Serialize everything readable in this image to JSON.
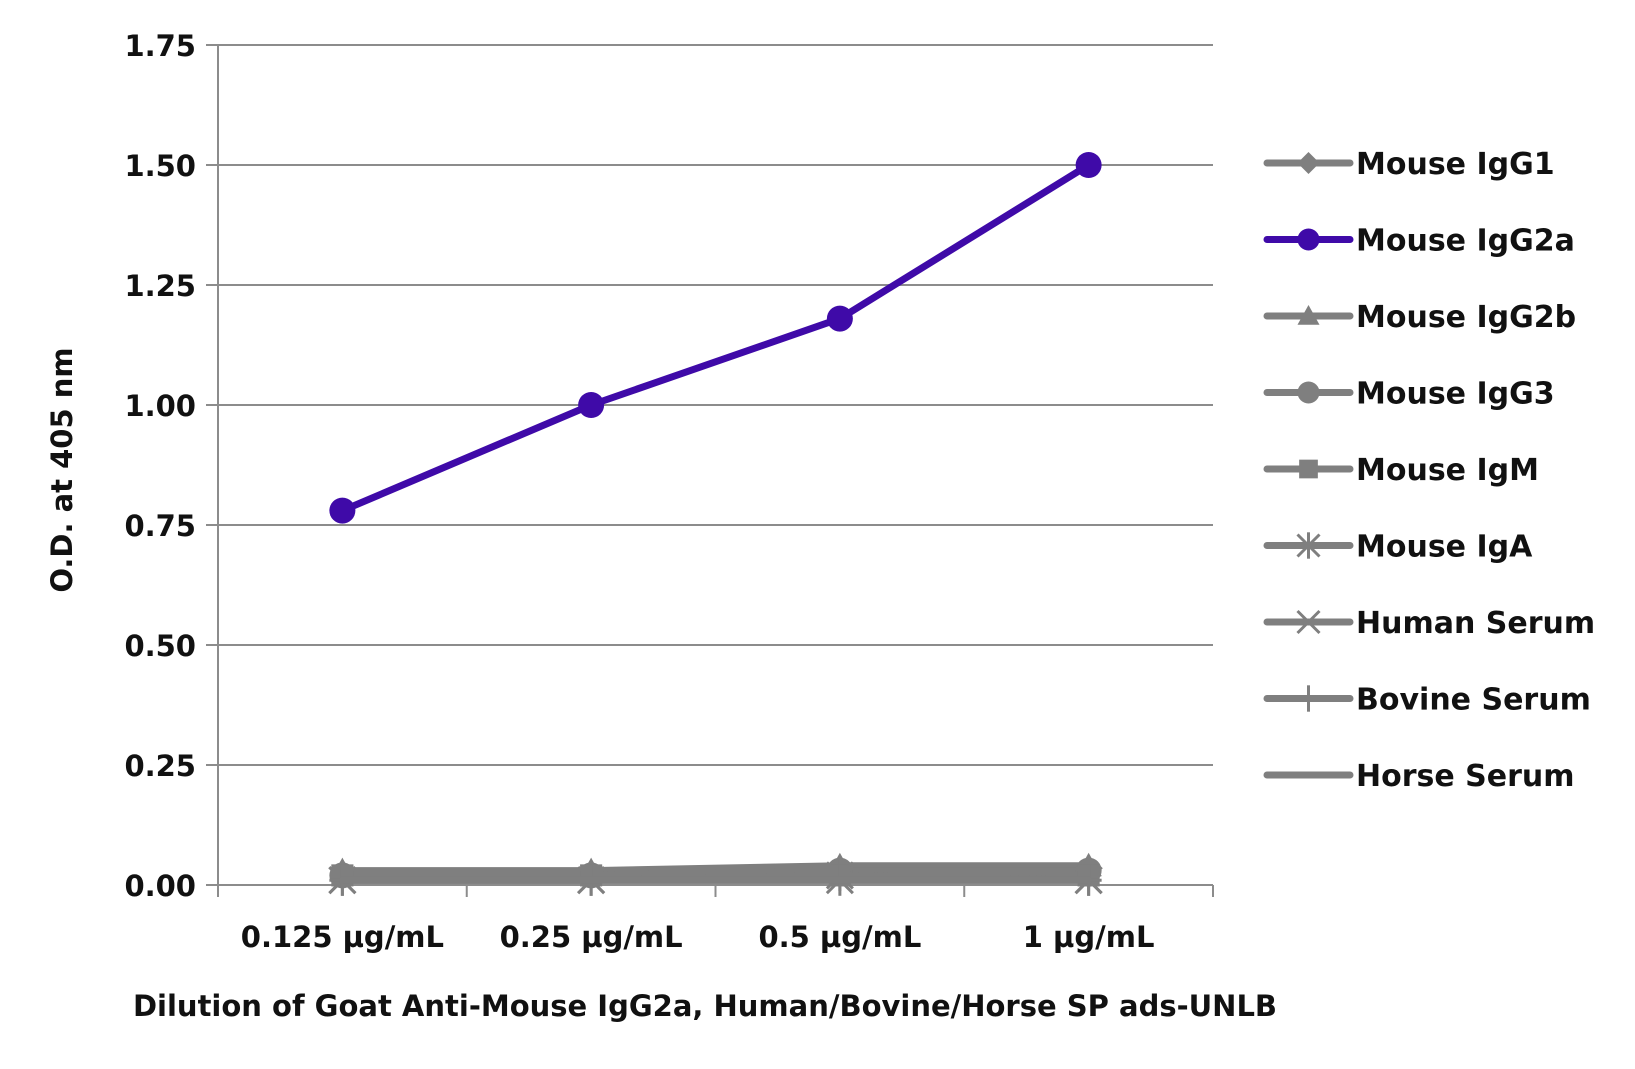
{
  "chart_data": {
    "type": "line",
    "categories": [
      "0.125 µg/mL",
      "0.25 µg/mL",
      "0.5 µg/mL",
      "1 µg/mL"
    ],
    "xlabel": "Dilution of Goat Anti-Mouse IgG2a, Human/Bovine/Horse SP ads-UNLB",
    "ylabel": "O.D. at 405 nm",
    "ylim": [
      0,
      1.75
    ],
    "yticks": [
      "0.00",
      "0.25",
      "0.50",
      "0.75",
      "1.00",
      "1.25",
      "1.50",
      "1.75"
    ],
    "grid": true,
    "legend_position": "right",
    "series": [
      {
        "name": "Mouse IgG1",
        "values": [
          0.02,
          0.02,
          0.03,
          0.02
        ],
        "color": "#7f7f7f",
        "marker": "diamond"
      },
      {
        "name": "Mouse IgG2a",
        "values": [
          0.78,
          1.0,
          1.18,
          1.5
        ],
        "color": "#3f0aa8",
        "marker": "circle"
      },
      {
        "name": "Mouse IgG2b",
        "values": [
          0.03,
          0.03,
          0.04,
          0.04
        ],
        "color": "#7f7f7f",
        "marker": "triangle"
      },
      {
        "name": "Mouse IgG3",
        "values": [
          0.02,
          0.02,
          0.03,
          0.03
        ],
        "color": "#7f7f7f",
        "marker": "circle"
      },
      {
        "name": "Mouse IgM",
        "values": [
          0.02,
          0.02,
          0.02,
          0.02
        ],
        "color": "#7f7f7f",
        "marker": "square"
      },
      {
        "name": "Mouse IgA",
        "values": [
          0.01,
          0.01,
          0.02,
          0.01
        ],
        "color": "#7f7f7f",
        "marker": "asterisk"
      },
      {
        "name": "Human Serum",
        "values": [
          0.01,
          0.01,
          0.01,
          0.01
        ],
        "color": "#7f7f7f",
        "marker": "x"
      },
      {
        "name": "Bovine Serum",
        "values": [
          0.01,
          0.01,
          0.01,
          0.01
        ],
        "color": "#7f7f7f",
        "marker": "plus"
      },
      {
        "name": "Horse Serum",
        "values": [
          0.01,
          0.01,
          0.01,
          0.01
        ],
        "color": "#7f7f7f",
        "marker": "none"
      }
    ]
  }
}
